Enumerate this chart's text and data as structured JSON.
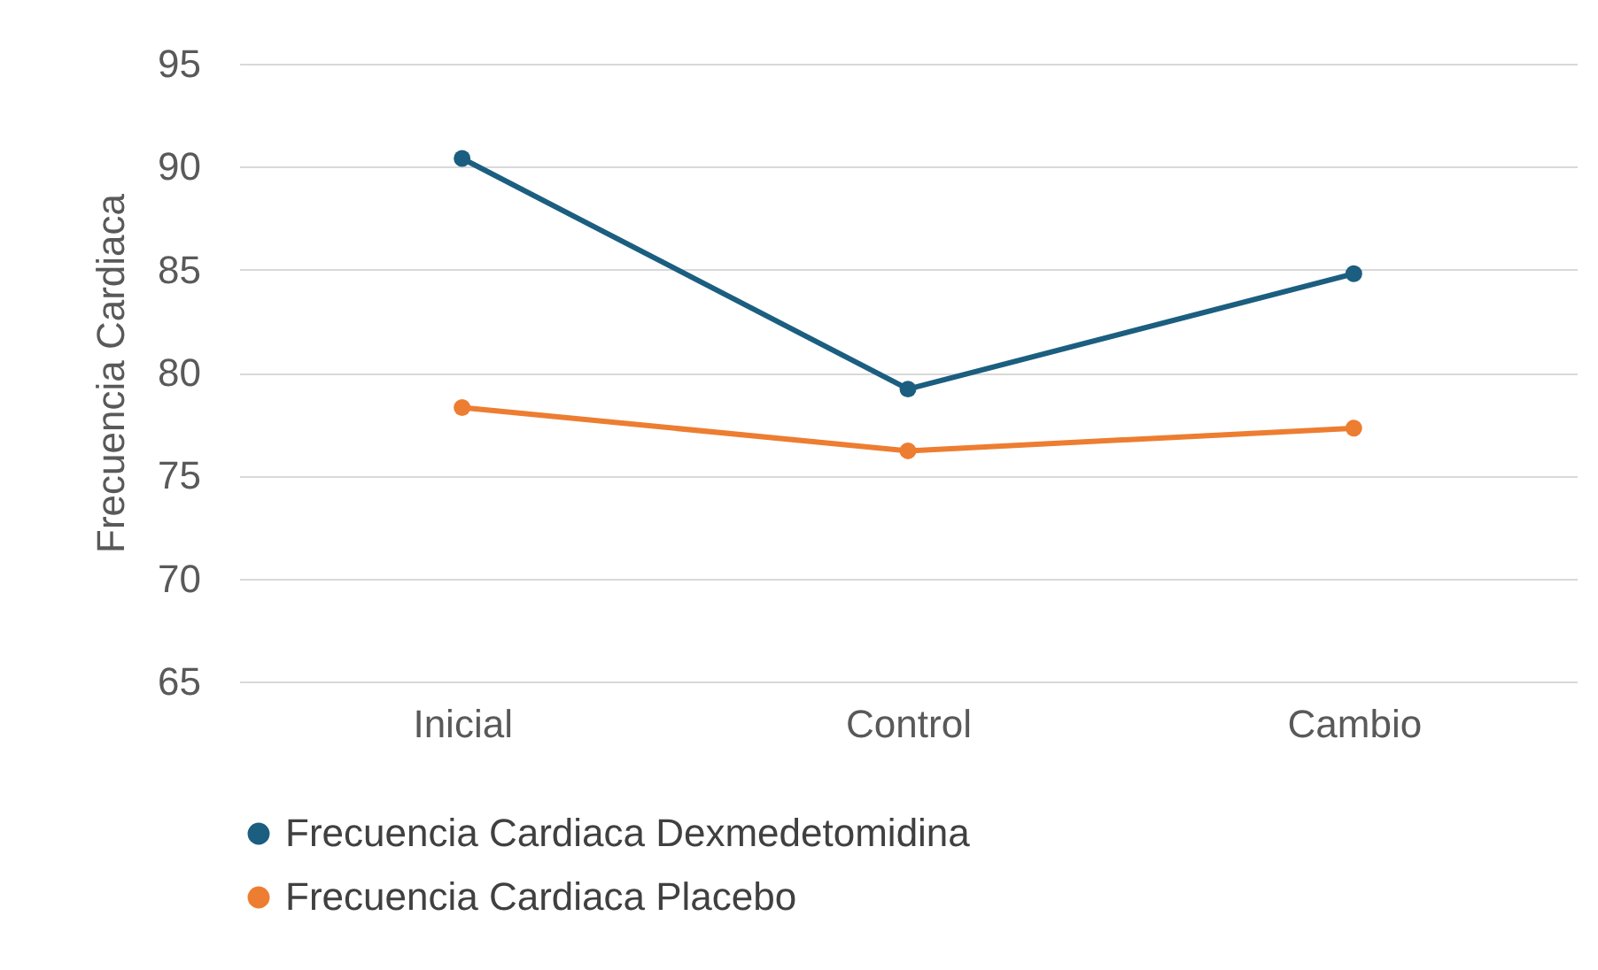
{
  "chart_data": {
    "type": "line",
    "ylabel": "Frecuencia Cardiaca",
    "categories": [
      "Inicial",
      "Control",
      "Cambio"
    ],
    "series": [
      {
        "name": "Frecuencia Cardiaca Dexmedetomidina",
        "color": "#1b5e80",
        "values": [
          90.4,
          79.2,
          84.8
        ]
      },
      {
        "name": "Frecuencia Cardiaca Placebo",
        "color": "#ed7d31",
        "values": [
          78.3,
          76.2,
          77.3
        ]
      }
    ],
    "ylim": [
      65,
      95
    ],
    "yticks": [
      65,
      70,
      75,
      80,
      85,
      90,
      95
    ],
    "grid": "y",
    "legend": "bottom",
    "marker": "circle",
    "line_style": "solid"
  }
}
